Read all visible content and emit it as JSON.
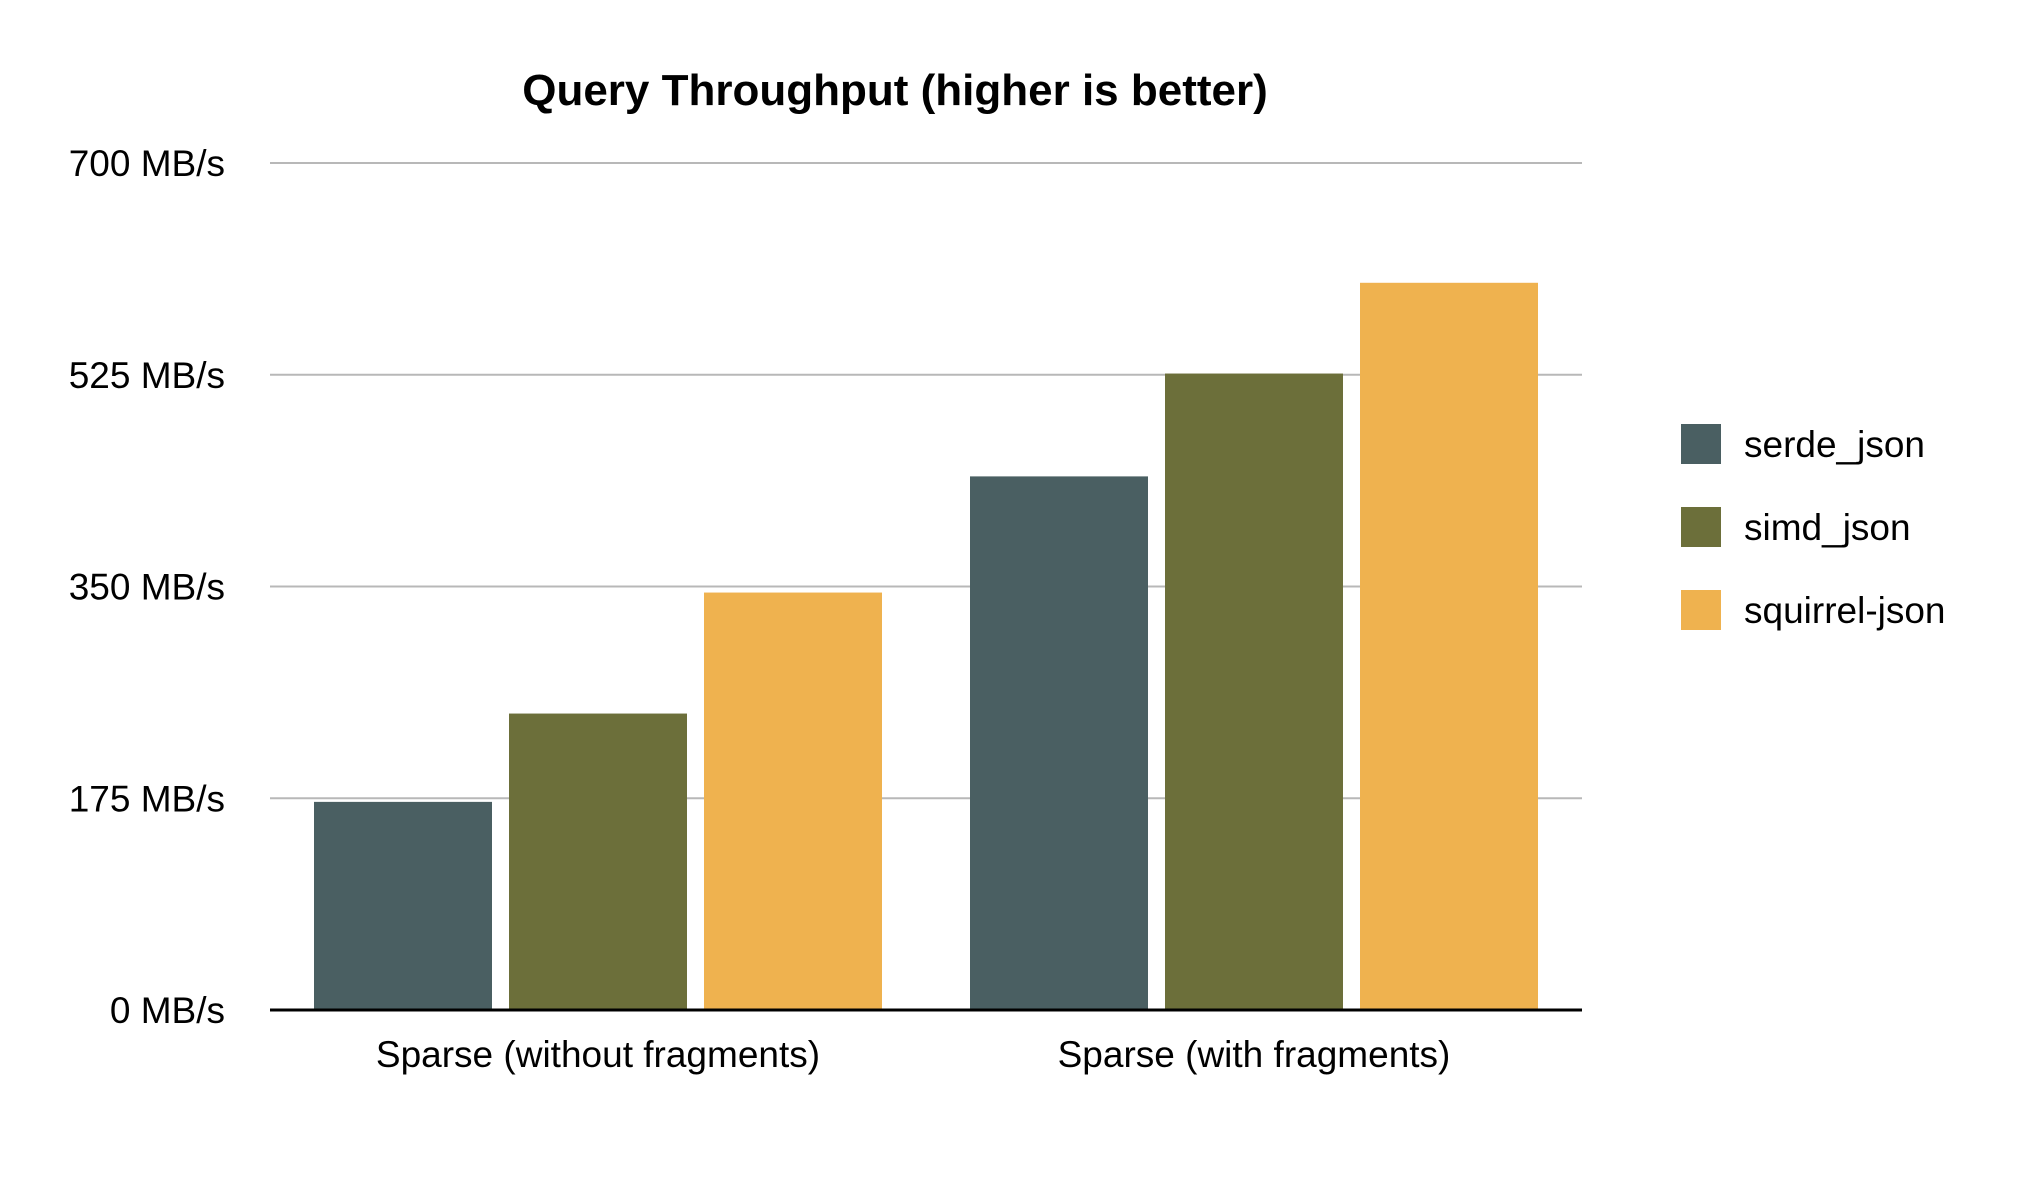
{
  "chart_data": {
    "type": "bar",
    "title": "Query Throughput (higher is better)",
    "xlabel": "",
    "ylabel": "",
    "categories": [
      "Sparse (without fragments)",
      "Sparse (with fragments)"
    ],
    "series": [
      {
        "name": "serde_json",
        "color": "#4a5f62",
        "values": [
          172,
          441
        ]
      },
      {
        "name": "simd_json",
        "color": "#6c6f3a",
        "values": [
          245,
          526
        ]
      },
      {
        "name": "squirrel-json",
        "color": "#efb24f",
        "values": [
          345,
          601
        ]
      }
    ],
    "ylim": [
      0,
      700
    ],
    "yticks": [
      0,
      175,
      350,
      525,
      700
    ],
    "ytick_labels": [
      "0 MB/s",
      "175 MB/s",
      "350 MB/s",
      "525 MB/s",
      "700 MB/s"
    ],
    "grid": true,
    "legend": "right"
  }
}
